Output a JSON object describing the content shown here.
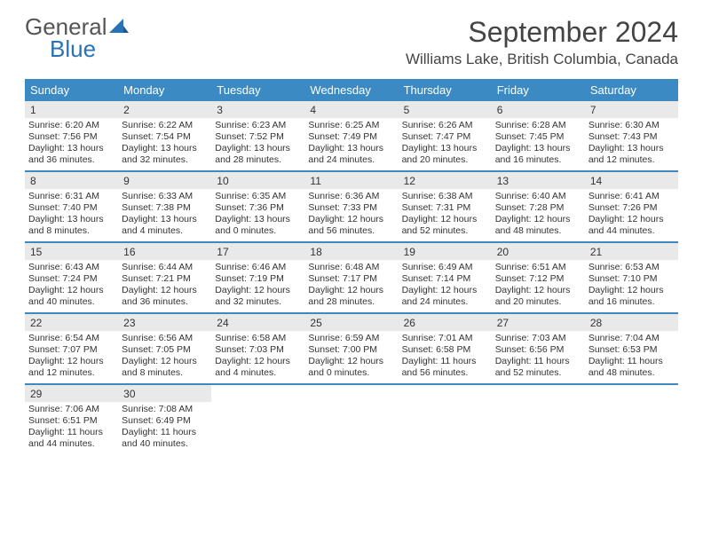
{
  "logo": {
    "word1": "General",
    "word2": "Blue"
  },
  "title": "September 2024",
  "location": "Williams Lake, British Columbia, Canada",
  "colors": {
    "header_bg": "#3b8ac4",
    "header_text": "#ffffff",
    "daynum_bg": "#e9e9e9",
    "rule": "#3b8ac4",
    "logo_gray": "#555555",
    "logo_blue": "#2873b8",
    "text": "#333333",
    "page_bg": "#ffffff"
  },
  "typography": {
    "title_fontsize": 32,
    "location_fontsize": 17,
    "weekday_fontsize": 13,
    "daynum_fontsize": 12,
    "body_fontsize": 10.5,
    "font_family": "Arial"
  },
  "weekdays": [
    "Sunday",
    "Monday",
    "Tuesday",
    "Wednesday",
    "Thursday",
    "Friday",
    "Saturday"
  ],
  "weeks": [
    [
      {
        "n": "1",
        "sunrise": "Sunrise: 6:20 AM",
        "sunset": "Sunset: 7:56 PM",
        "daylight": "Daylight: 13 hours and 36 minutes."
      },
      {
        "n": "2",
        "sunrise": "Sunrise: 6:22 AM",
        "sunset": "Sunset: 7:54 PM",
        "daylight": "Daylight: 13 hours and 32 minutes."
      },
      {
        "n": "3",
        "sunrise": "Sunrise: 6:23 AM",
        "sunset": "Sunset: 7:52 PM",
        "daylight": "Daylight: 13 hours and 28 minutes."
      },
      {
        "n": "4",
        "sunrise": "Sunrise: 6:25 AM",
        "sunset": "Sunset: 7:49 PM",
        "daylight": "Daylight: 13 hours and 24 minutes."
      },
      {
        "n": "5",
        "sunrise": "Sunrise: 6:26 AM",
        "sunset": "Sunset: 7:47 PM",
        "daylight": "Daylight: 13 hours and 20 minutes."
      },
      {
        "n": "6",
        "sunrise": "Sunrise: 6:28 AM",
        "sunset": "Sunset: 7:45 PM",
        "daylight": "Daylight: 13 hours and 16 minutes."
      },
      {
        "n": "7",
        "sunrise": "Sunrise: 6:30 AM",
        "sunset": "Sunset: 7:43 PM",
        "daylight": "Daylight: 13 hours and 12 minutes."
      }
    ],
    [
      {
        "n": "8",
        "sunrise": "Sunrise: 6:31 AM",
        "sunset": "Sunset: 7:40 PM",
        "daylight": "Daylight: 13 hours and 8 minutes."
      },
      {
        "n": "9",
        "sunrise": "Sunrise: 6:33 AM",
        "sunset": "Sunset: 7:38 PM",
        "daylight": "Daylight: 13 hours and 4 minutes."
      },
      {
        "n": "10",
        "sunrise": "Sunrise: 6:35 AM",
        "sunset": "Sunset: 7:36 PM",
        "daylight": "Daylight: 13 hours and 0 minutes."
      },
      {
        "n": "11",
        "sunrise": "Sunrise: 6:36 AM",
        "sunset": "Sunset: 7:33 PM",
        "daylight": "Daylight: 12 hours and 56 minutes."
      },
      {
        "n": "12",
        "sunrise": "Sunrise: 6:38 AM",
        "sunset": "Sunset: 7:31 PM",
        "daylight": "Daylight: 12 hours and 52 minutes."
      },
      {
        "n": "13",
        "sunrise": "Sunrise: 6:40 AM",
        "sunset": "Sunset: 7:28 PM",
        "daylight": "Daylight: 12 hours and 48 minutes."
      },
      {
        "n": "14",
        "sunrise": "Sunrise: 6:41 AM",
        "sunset": "Sunset: 7:26 PM",
        "daylight": "Daylight: 12 hours and 44 minutes."
      }
    ],
    [
      {
        "n": "15",
        "sunrise": "Sunrise: 6:43 AM",
        "sunset": "Sunset: 7:24 PM",
        "daylight": "Daylight: 12 hours and 40 minutes."
      },
      {
        "n": "16",
        "sunrise": "Sunrise: 6:44 AM",
        "sunset": "Sunset: 7:21 PM",
        "daylight": "Daylight: 12 hours and 36 minutes."
      },
      {
        "n": "17",
        "sunrise": "Sunrise: 6:46 AM",
        "sunset": "Sunset: 7:19 PM",
        "daylight": "Daylight: 12 hours and 32 minutes."
      },
      {
        "n": "18",
        "sunrise": "Sunrise: 6:48 AM",
        "sunset": "Sunset: 7:17 PM",
        "daylight": "Daylight: 12 hours and 28 minutes."
      },
      {
        "n": "19",
        "sunrise": "Sunrise: 6:49 AM",
        "sunset": "Sunset: 7:14 PM",
        "daylight": "Daylight: 12 hours and 24 minutes."
      },
      {
        "n": "20",
        "sunrise": "Sunrise: 6:51 AM",
        "sunset": "Sunset: 7:12 PM",
        "daylight": "Daylight: 12 hours and 20 minutes."
      },
      {
        "n": "21",
        "sunrise": "Sunrise: 6:53 AM",
        "sunset": "Sunset: 7:10 PM",
        "daylight": "Daylight: 12 hours and 16 minutes."
      }
    ],
    [
      {
        "n": "22",
        "sunrise": "Sunrise: 6:54 AM",
        "sunset": "Sunset: 7:07 PM",
        "daylight": "Daylight: 12 hours and 12 minutes."
      },
      {
        "n": "23",
        "sunrise": "Sunrise: 6:56 AM",
        "sunset": "Sunset: 7:05 PM",
        "daylight": "Daylight: 12 hours and 8 minutes."
      },
      {
        "n": "24",
        "sunrise": "Sunrise: 6:58 AM",
        "sunset": "Sunset: 7:03 PM",
        "daylight": "Daylight: 12 hours and 4 minutes."
      },
      {
        "n": "25",
        "sunrise": "Sunrise: 6:59 AM",
        "sunset": "Sunset: 7:00 PM",
        "daylight": "Daylight: 12 hours and 0 minutes."
      },
      {
        "n": "26",
        "sunrise": "Sunrise: 7:01 AM",
        "sunset": "Sunset: 6:58 PM",
        "daylight": "Daylight: 11 hours and 56 minutes."
      },
      {
        "n": "27",
        "sunrise": "Sunrise: 7:03 AM",
        "sunset": "Sunset: 6:56 PM",
        "daylight": "Daylight: 11 hours and 52 minutes."
      },
      {
        "n": "28",
        "sunrise": "Sunrise: 7:04 AM",
        "sunset": "Sunset: 6:53 PM",
        "daylight": "Daylight: 11 hours and 48 minutes."
      }
    ],
    [
      {
        "n": "29",
        "sunrise": "Sunrise: 7:06 AM",
        "sunset": "Sunset: 6:51 PM",
        "daylight": "Daylight: 11 hours and 44 minutes."
      },
      {
        "n": "30",
        "sunrise": "Sunrise: 7:08 AM",
        "sunset": "Sunset: 6:49 PM",
        "daylight": "Daylight: 11 hours and 40 minutes."
      },
      null,
      null,
      null,
      null,
      null
    ]
  ]
}
